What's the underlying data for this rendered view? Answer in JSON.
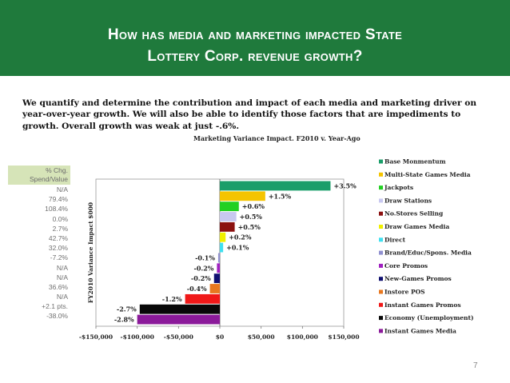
{
  "slide": {
    "title_line1": "How has media and marketing impacted State",
    "title_line2": "Lottery Corp. revenue growth?",
    "intro": "We quantify and determine the contribution and impact of each media and marketing driver on year-over-year growth.   We will also be able to identify those factors that are impediments to growth.  Overall growth was weak at just -.6%.",
    "page_number": "7"
  },
  "pct_table": {
    "header": [
      "% Chg.",
      "Spend/Value"
    ],
    "values": [
      "N/A",
      "79.4%",
      "108.4%",
      "0.0%",
      "2.7%",
      "42.7%",
      "32.0%",
      "-7.2%",
      "N/A",
      "N/A",
      "36.6%",
      "N/A",
      "+2.1 pts.",
      "-38.0%"
    ]
  },
  "colors": {
    "header_bg": "#1f7a3c",
    "table_header_bg": "#d6e4b8"
  },
  "chart_data": {
    "type": "bar",
    "orientation": "horizontal",
    "title": "Marketing Variance Impact.    F2010 v. Year-Ago",
    "ylabel": "FY2010 Variance Impact $000",
    "xlim": [
      -150000,
      150000
    ],
    "x_ticks": [
      -150000,
      -100000,
      -50000,
      0,
      50000,
      100000,
      150000
    ],
    "x_tick_labels": [
      "-$150,000",
      "-$100,000",
      "-$50,000",
      "$0",
      "$50,000",
      "$100,000",
      "$150,000"
    ],
    "legend_position": "right",
    "categories": [
      "Base Monmentum",
      "Multi-State Games Media",
      "Jackpots",
      "Draw Stations",
      "No.Stores Selling",
      "Draw Games Media",
      "Direct",
      "Brand/Educ/Spons. Media",
      "Core Promos",
      "New-Games Promos",
      "Instore POS",
      "Instant Games Promos",
      "Economy (Unemployment)",
      "Instant Games Media"
    ],
    "values": [
      134000,
      55000,
      23000,
      20000,
      18000,
      7000,
      4000,
      -2000,
      -3500,
      -7000,
      -12000,
      -42000,
      -97000,
      -100000
    ],
    "labels": [
      "+3.5%",
      "+1.5%",
      "+0.6%",
      "+0.5%",
      "+0.5%",
      "+0.2%",
      "+0.1%",
      "-0.1%",
      "-0.2%",
      "-0.2%",
      "-0.4%",
      "-1.2%",
      "-2.7%",
      "-2.8%"
    ],
    "colors": [
      "#1a9e6a",
      "#f5c400",
      "#22d022",
      "#c8c8f0",
      "#8b1010",
      "#f0f000",
      "#40e0f0",
      "#9090d0",
      "#a020c0",
      "#101070",
      "#e87820",
      "#f01818",
      "#080808",
      "#8b1a9a"
    ]
  }
}
